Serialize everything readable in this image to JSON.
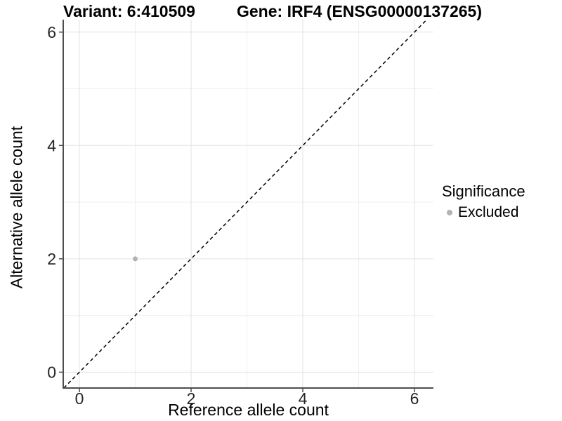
{
  "chart_data": {
    "type": "scatter",
    "title_left": "Variant: 6:410509",
    "title_right": "Gene: IRF4 (ENSG00000137265)",
    "xlabel": "Reference allele count",
    "ylabel": "Alternative allele count",
    "xticks": [
      0,
      2,
      4,
      6
    ],
    "yticks": [
      0,
      2,
      4,
      6
    ],
    "xminor": [
      1,
      3,
      5
    ],
    "yminor": [
      1,
      3,
      5
    ],
    "xlim": [
      -0.29,
      6.34
    ],
    "ylim": [
      -0.28,
      6.22
    ],
    "grid": "major-and-minor",
    "legend": {
      "position": "right",
      "title": "Significance",
      "items": [
        {
          "label": "Excluded",
          "color": "#b3b3b3"
        }
      ]
    },
    "series": [
      {
        "name": "Excluded",
        "color": "#b3b3b3",
        "points": [
          [
            1,
            2
          ]
        ]
      }
    ],
    "identity_line": {
      "equation": "y = x",
      "style": "dashed",
      "color": "#000000"
    }
  },
  "style": {
    "panel_bg": "#ffffff",
    "grid_major": "#e2e2e2",
    "grid_minor": "#efefef",
    "axis_line": "#4d4d4d",
    "tick_color": "#4d4d4d",
    "tick_text": "#262626"
  }
}
